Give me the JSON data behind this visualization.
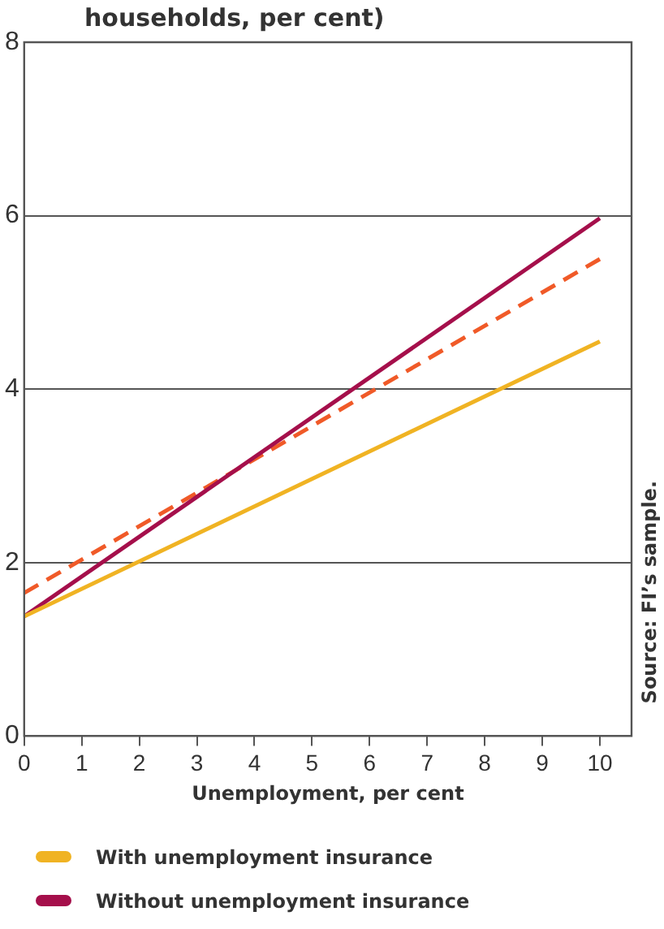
{
  "chart_data": {
    "type": "line",
    "title": "households, per cent)",
    "xlabel": "Unemployment, per cent",
    "x": [
      0,
      10
    ],
    "series": [
      {
        "name": "With unemployment insurance",
        "color": "#f0b323",
        "values": [
          1.38,
          4.55
        ]
      },
      {
        "name": "Without unemployment insurance",
        "color": "#a50f4b",
        "values": [
          1.38,
          5.97
        ]
      },
      {
        "color": "#f05a28",
        "values": [
          1.65,
          5.5
        ],
        "line_style": "dashed"
      }
    ],
    "xlim": [
      0,
      10.55
    ],
    "xticks": [
      0,
      1,
      2,
      3,
      4,
      5,
      6,
      7,
      8,
      9,
      10
    ],
    "ylim": [
      0,
      8
    ],
    "yticks": [
      0,
      2,
      4,
      6,
      8
    ],
    "grid": "y",
    "legend": "bottom",
    "marker": "none",
    "line_style": "solid",
    "annotations": [
      "Source: FI’s sample."
    ]
  }
}
